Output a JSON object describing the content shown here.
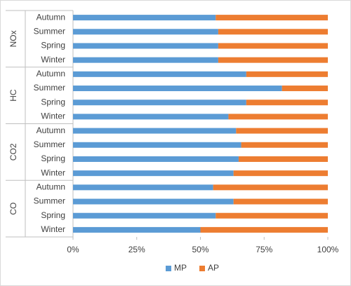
{
  "chart_data": {
    "type": "stacked-bar-100",
    "groups": [
      {
        "name": "NOx",
        "categories": [
          "Autumn",
          "Summer",
          "Spring",
          "Winter"
        ]
      },
      {
        "name": "HC",
        "categories": [
          "Autumn",
          "Summer",
          "Spring",
          "Winter"
        ]
      },
      {
        "name": "CO2",
        "categories": [
          "Autumn",
          "Summer",
          "Spring",
          "Winter"
        ]
      },
      {
        "name": "CO",
        "categories": [
          "Autumn",
          "Summer",
          "Spring",
          "Winter"
        ]
      }
    ],
    "series": [
      {
        "name": "MP",
        "color": "#5b9bd5",
        "values": [
          56,
          57,
          57,
          57,
          68,
          82,
          68,
          61,
          64,
          66,
          65,
          63,
          55,
          63,
          56,
          50
        ]
      },
      {
        "name": "AP",
        "color": "#ed7d31",
        "values": [
          44,
          43,
          43,
          43,
          32,
          18,
          32,
          39,
          36,
          34,
          35,
          37,
          45,
          37,
          44,
          50
        ]
      }
    ],
    "xlim": [
      0,
      100
    ],
    "xticks": [
      {
        "value": 0,
        "label": "0%"
      },
      {
        "value": 25,
        "label": "25%"
      },
      {
        "value": 50,
        "label": "50%"
      },
      {
        "value": 75,
        "label": "75%"
      },
      {
        "value": 100,
        "label": "100%"
      }
    ],
    "legend": "bottom"
  }
}
